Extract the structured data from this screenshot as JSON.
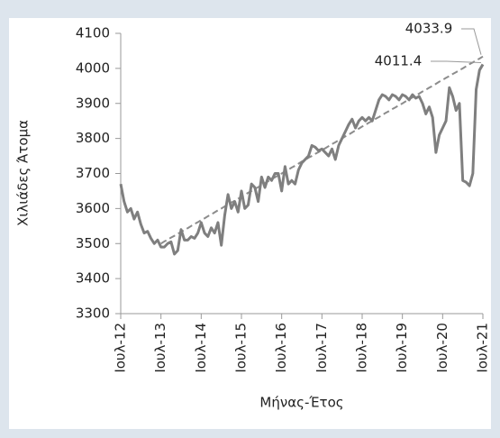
{
  "chart_data": {
    "type": "line",
    "y_label": "Χιλιάδες Άτομα",
    "x_label": "Μήνας-Έτος",
    "categories": [
      "Ιουλ-12",
      null,
      null,
      null,
      null,
      null,
      null,
      null,
      null,
      null,
      null,
      null,
      "Ιουλ-13",
      null,
      null,
      null,
      null,
      null,
      null,
      null,
      null,
      null,
      null,
      null,
      "Ιουλ-14",
      null,
      null,
      null,
      null,
      null,
      null,
      null,
      null,
      null,
      null,
      null,
      "Ιουλ-15",
      null,
      null,
      null,
      null,
      null,
      null,
      null,
      null,
      null,
      null,
      null,
      "Ιουλ-16",
      null,
      null,
      null,
      null,
      null,
      null,
      null,
      null,
      null,
      null,
      null,
      "Ιουλ-17",
      null,
      null,
      null,
      null,
      null,
      null,
      null,
      null,
      null,
      null,
      null,
      "Ιουλ-18",
      null,
      null,
      null,
      null,
      null,
      null,
      null,
      null,
      null,
      null,
      null,
      "Ιουλ-19",
      null,
      null,
      null,
      null,
      null,
      null,
      null,
      null,
      null,
      null,
      null,
      "Ιουλ-20",
      null,
      null,
      null,
      null,
      null,
      null,
      null,
      null,
      null,
      null,
      null,
      "Ιουλ-21"
    ],
    "series": [
      {
        "color": "#7f7f7f",
        "dashed": false,
        "values": [
          3670,
          3620,
          3590,
          3600,
          3570,
          3590,
          3555,
          3530,
          3535,
          3515,
          3500,
          3510,
          3490,
          3490,
          3500,
          3505,
          3470,
          3480,
          3540,
          3510,
          3510,
          3520,
          3515,
          3530,
          3560,
          3530,
          3520,
          3545,
          3530,
          3560,
          3495,
          3580,
          3640,
          3600,
          3620,
          3590,
          3650,
          3600,
          3610,
          3670,
          3660,
          3620,
          3690,
          3660,
          3690,
          3680,
          3700,
          3700,
          3650,
          3720,
          3670,
          3680,
          3670,
          3710,
          3730,
          3740,
          3750,
          3780,
          3775,
          3765,
          3770,
          3760,
          3750,
          3770,
          3740,
          3780,
          3800,
          3820,
          3840,
          3855,
          3830,
          3850,
          3860,
          3850,
          3860,
          3850,
          3880,
          3910,
          3925,
          3920,
          3910,
          3925,
          3920,
          3910,
          3925,
          3920,
          3910,
          3925,
          3915,
          3920,
          3900,
          3870,
          3890,
          3860,
          3760,
          3810,
          3830,
          3850,
          3945,
          3920,
          3880,
          3900,
          3680,
          3675,
          3665,
          3700,
          3940,
          3995,
          4011.4
        ]
      },
      {
        "color": "#8c8c8c",
        "dashed": true,
        "values": [
          null,
          null,
          null,
          null,
          null,
          null,
          null,
          null,
          null,
          null,
          null,
          null,
          3500,
          3506,
          3511,
          3517,
          3522,
          3528,
          3533,
          3539,
          3544,
          3550,
          3556,
          3561,
          3567,
          3572,
          3578,
          3583,
          3589,
          3595,
          3600,
          3606,
          3611,
          3617,
          3622,
          3628,
          3633,
          3639,
          3645,
          3650,
          3656,
          3661,
          3667,
          3672,
          3678,
          3684,
          3689,
          3695,
          3700,
          3706,
          3711,
          3717,
          3722,
          3728,
          3734,
          3739,
          3745,
          3750,
          3756,
          3761,
          3767,
          3772,
          3778,
          3784,
          3789,
          3795,
          3800,
          3806,
          3811,
          3817,
          3823,
          3828,
          3834,
          3839,
          3845,
          3850,
          3856,
          3861,
          3867,
          3873,
          3878,
          3884,
          3889,
          3895,
          3900,
          3906,
          3912,
          3917,
          3923,
          3928,
          3934,
          3939,
          3945,
          3950,
          3956,
          3962,
          3967,
          3973,
          3978,
          3984,
          3989,
          3995,
          4000,
          4006,
          4012,
          4017,
          4023,
          4028,
          4033.9
        ]
      }
    ],
    "annotations": [
      {
        "text": "4033.9",
        "series": 1
      },
      {
        "text": "4011.4",
        "series": 0
      }
    ],
    "ylim": [
      3300,
      4100
    ],
    "yticks": [
      3300,
      3400,
      3500,
      3600,
      3700,
      3800,
      3900,
      4000,
      4100
    ]
  }
}
